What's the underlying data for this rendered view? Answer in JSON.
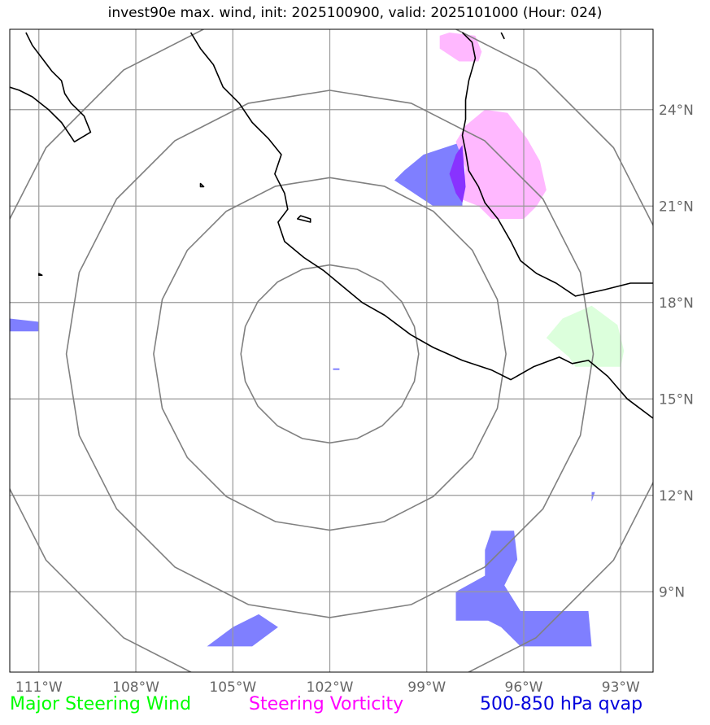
{
  "title": "invest90e max. wind, init: 2025100900, valid: 2025101000 (Hour: 024)",
  "map": {
    "lon_ticks": [
      "111°W",
      "108°W",
      "105°W",
      "102°W",
      "99°W",
      "96°W",
      "93°W"
    ],
    "lat_ticks": [
      "24°N",
      "21°N",
      "18°N",
      "15°N",
      "12°N",
      "9°N"
    ],
    "lon_values": [
      -111,
      -108,
      -105,
      -102,
      -99,
      -96,
      -93
    ],
    "lat_values": [
      24,
      21,
      18,
      15,
      12,
      9
    ],
    "lon_range": [
      -111.9,
      -92.0
    ],
    "lat_range": [
      6.5,
      26.5
    ],
    "center": {
      "lon": -102.0,
      "lat": 16.4
    },
    "range_rings_deg": [
      2.75,
      5.45,
      8.15,
      10.85
    ]
  },
  "legend": {
    "wind": "Major Steering Wind",
    "vorticity": "Steering Vorticity",
    "qvap": "500-850 hPa qvap"
  },
  "colors": {
    "wind": "#00ff00",
    "vorticity": "#ff00ff",
    "qvap": "#0000dd",
    "wind_fill": "#dcffdc",
    "vort_fill": "#ffb8ff",
    "qvap_fill": "#7f7fff",
    "overlap_fill": "#8833ff",
    "grid": "#999999",
    "ring": "#808080",
    "coast": "#000000"
  },
  "fields": {
    "qvap": [
      [
        [
          -99.1,
          22.6
        ],
        [
          -97.9,
          23.0
        ],
        [
          -97.9,
          21.0
        ],
        [
          -98.8,
          21.0
        ],
        [
          -100.0,
          21.8
        ],
        [
          -99.7,
          22.1
        ]
      ],
      [
        [
          -111.9,
          17.5
        ],
        [
          -111.0,
          17.4
        ],
        [
          -111.0,
          17.1
        ],
        [
          -111.9,
          17.1
        ]
      ],
      [
        [
          -97.0,
          10.9
        ],
        [
          -96.3,
          10.9
        ],
        [
          -96.2,
          10.0
        ],
        [
          -96.6,
          9.2
        ],
        [
          -96.1,
          8.4
        ],
        [
          -94.0,
          8.4
        ],
        [
          -93.9,
          7.3
        ],
        [
          -96.1,
          7.3
        ],
        [
          -96.7,
          7.9
        ],
        [
          -97.1,
          8.1
        ],
        [
          -98.1,
          8.1
        ],
        [
          -98.1,
          9.0
        ],
        [
          -97.2,
          9.5
        ],
        [
          -97.2,
          10.3
        ]
      ],
      [
        [
          -104.2,
          8.3
        ],
        [
          -103.6,
          7.9
        ],
        [
          -104.4,
          7.3
        ],
        [
          -105.8,
          7.3
        ],
        [
          -105.0,
          7.9
        ]
      ],
      [
        [
          -93.9,
          12.1
        ],
        [
          -93.8,
          12.1
        ],
        [
          -93.9,
          11.8
        ]
      ],
      [
        [
          -101.9,
          15.9
        ],
        [
          -101.7,
          15.9
        ],
        [
          -101.7,
          15.95
        ],
        [
          -101.9,
          15.95
        ]
      ]
    ],
    "vorticity": [
      [
        [
          -97.2,
          24.0
        ],
        [
          -96.5,
          23.9
        ],
        [
          -95.9,
          23.1
        ],
        [
          -95.5,
          22.4
        ],
        [
          -95.3,
          21.5
        ],
        [
          -95.6,
          21.0
        ],
        [
          -96.0,
          20.6
        ],
        [
          -97.0,
          20.6
        ],
        [
          -97.4,
          21.0
        ],
        [
          -97.9,
          21.2
        ],
        [
          -97.8,
          22.2
        ],
        [
          -98.1,
          23.0
        ],
        [
          -97.8,
          23.5
        ]
      ],
      [
        [
          -98.3,
          26.4
        ],
        [
          -97.5,
          26.3
        ],
        [
          -97.3,
          25.8
        ],
        [
          -97.4,
          25.5
        ],
        [
          -98.0,
          25.5
        ],
        [
          -98.6,
          25.9
        ],
        [
          -98.6,
          26.3
        ]
      ]
    ],
    "overlap": [
      [
        [
          -97.9,
          22.9
        ],
        [
          -97.8,
          21.6
        ],
        [
          -97.9,
          21.1
        ],
        [
          -98.1,
          21.4
        ],
        [
          -98.3,
          22.0
        ],
        [
          -98.1,
          22.6
        ]
      ]
    ],
    "wind": [
      [
        [
          -93.9,
          17.9
        ],
        [
          -93.1,
          17.3
        ],
        [
          -92.9,
          16.5
        ],
        [
          -93.0,
          16.0
        ],
        [
          -94.4,
          16.0
        ],
        [
          -94.6,
          16.3
        ],
        [
          -95.3,
          16.9
        ],
        [
          -94.8,
          17.5
        ]
      ]
    ]
  },
  "coast": {
    "pacific_mexico": [
      [
        -111.4,
        26.4
      ],
      [
        -111.2,
        26.0
      ],
      [
        -110.9,
        25.6
      ],
      [
        -110.6,
        25.2
      ],
      [
        -110.3,
        24.9
      ],
      [
        -110.2,
        24.5
      ],
      [
        -110.0,
        24.2
      ],
      [
        -109.6,
        23.8
      ],
      [
        -109.4,
        23.3
      ],
      [
        -109.9,
        23.0
      ],
      [
        -110.3,
        23.6
      ],
      [
        -110.7,
        24.0
      ],
      [
        -111.2,
        24.4
      ],
      [
        -111.6,
        24.6
      ],
      [
        -111.9,
        24.7
      ]
    ],
    "mainland": [
      [
        -97.9,
        26.4
      ],
      [
        -97.6,
        26.1
      ],
      [
        -97.5,
        25.6
      ],
      [
        -97.7,
        24.9
      ],
      [
        -97.8,
        24.3
      ],
      [
        -97.8,
        23.7
      ],
      [
        -97.9,
        23.2
      ],
      [
        -97.8,
        22.7
      ],
      [
        -97.7,
        22.1
      ],
      [
        -97.4,
        21.6
      ],
      [
        -97.2,
        21.1
      ],
      [
        -96.8,
        20.6
      ],
      [
        -96.4,
        19.9
      ],
      [
        -96.1,
        19.3
      ],
      [
        -95.6,
        18.9
      ],
      [
        -95.0,
        18.6
      ],
      [
        -94.4,
        18.2
      ],
      [
        -93.5,
        18.4
      ],
      [
        -92.7,
        18.6
      ],
      [
        -92.0,
        18.6
      ]
    ],
    "gulf_coast_top": [
      [
        -96.7,
        26.4
      ],
      [
        -96.6,
        26.2
      ]
    ],
    "pacific_main": [
      [
        -106.3,
        26.4
      ],
      [
        -106.0,
        25.9
      ],
      [
        -105.6,
        25.4
      ],
      [
        -105.3,
        24.7
      ],
      [
        -104.8,
        24.2
      ],
      [
        -104.4,
        23.6
      ],
      [
        -103.9,
        23.1
      ],
      [
        -103.5,
        22.6
      ],
      [
        -103.7,
        22.0
      ],
      [
        -103.4,
        21.4
      ],
      [
        -103.3,
        20.9
      ],
      [
        -103.6,
        20.5
      ],
      [
        -103.4,
        19.9
      ],
      [
        -102.8,
        19.4
      ],
      [
        -102.2,
        19.0
      ],
      [
        -101.6,
        18.5
      ],
      [
        -101.0,
        18.0
      ],
      [
        -100.3,
        17.6
      ],
      [
        -99.5,
        17.0
      ],
      [
        -98.8,
        16.6
      ],
      [
        -97.9,
        16.2
      ],
      [
        -97.0,
        15.9
      ],
      [
        -96.4,
        15.6
      ],
      [
        -95.7,
        16.0
      ],
      [
        -94.9,
        16.3
      ],
      [
        -94.5,
        16.1
      ],
      [
        -94.0,
        16.2
      ],
      [
        -93.4,
        15.7
      ],
      [
        -92.8,
        15.0
      ],
      [
        -92.0,
        14.4
      ]
    ],
    "island_a": [
      [
        -103.0,
        20.6
      ],
      [
        -102.6,
        20.5
      ],
      [
        -102.6,
        20.6
      ],
      [
        -102.9,
        20.7
      ]
    ],
    "island_b": [
      [
        -106.0,
        21.7
      ],
      [
        -105.9,
        21.6
      ],
      [
        -106.0,
        21.6
      ]
    ],
    "island_c": [
      [
        -111.0,
        18.9
      ],
      [
        -110.9,
        18.85
      ],
      [
        -111.0,
        18.85
      ]
    ]
  }
}
